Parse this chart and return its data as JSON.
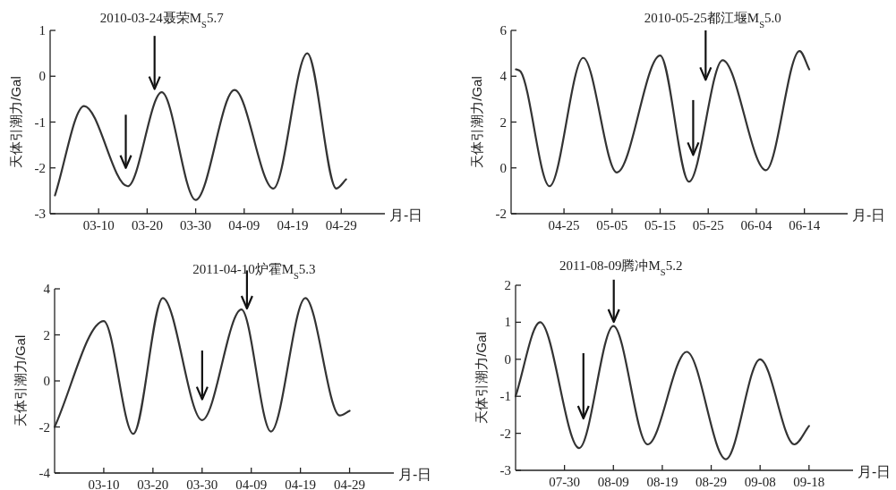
{
  "chart_data": [
    {
      "type": "line",
      "xlabel": "月-日",
      "ylabel": "天体引潮力/Gal",
      "xlim": [
        "--02-28",
        "--05-08"
      ],
      "ylim": [
        -3,
        1
      ],
      "yticks": [
        -3,
        -2,
        -1,
        0,
        1
      ],
      "xticks": [
        {
          "value": "--03-10",
          "label": "03-10"
        },
        {
          "value": "--03-20",
          "label": "03-20"
        },
        {
          "value": "--03-30",
          "label": "03-30"
        },
        {
          "value": "--04-09",
          "label": "04-09"
        },
        {
          "value": "--04-19",
          "label": "04-19"
        },
        {
          "value": "--04-29",
          "label": "04-29"
        }
      ],
      "grid": false,
      "marker": "none",
      "line_style": "solid",
      "title": "2010-03-24聂荣M$_{S}$5.7",
      "series": [
        {
          "color": "#333333",
          "x": [
            "--03-01",
            "--03-07",
            "--03-16",
            "--03-23",
            "--03-30",
            "--04-07",
            "--04-15",
            "--04-22",
            "--04-28",
            "--04-30"
          ],
          "values": [
            -2.6,
            -0.65,
            -2.4,
            -0.35,
            -2.7,
            -0.3,
            -2.45,
            0.5,
            -2.45,
            -2.25
          ]
        }
      ]
    },
    {
      "type": "line",
      "xlabel": "月-日",
      "ylabel": "天体引潮力/Gal",
      "xlim": [
        "--04-14",
        "--06-23"
      ],
      "ylim": [
        -2,
        6
      ],
      "yticks": [
        -2,
        0,
        2,
        4,
        6
      ],
      "xticks": [
        {
          "value": "--04-25",
          "label": "04-25"
        },
        {
          "value": "--05-05",
          "label": "05-05"
        },
        {
          "value": "--05-15",
          "label": "05-15"
        },
        {
          "value": "--05-25",
          "label": "05-25"
        },
        {
          "value": "--06-04",
          "label": "06-04"
        },
        {
          "value": "--06-14",
          "label": "06-14"
        }
      ],
      "grid": false,
      "marker": "none",
      "line_style": "solid",
      "title": "2010-05-25都江堰M$_{S}$5.0",
      "series": [
        {
          "color": "#333333",
          "x": [
            "--04-15",
            "--04-16",
            "--04-22",
            "--04-29",
            "--05-06",
            "--05-15",
            "--05-21",
            "--05-28",
            "--06-06",
            "--06-13",
            "--06-15"
          ],
          "values": [
            4.3,
            4.2,
            -0.8,
            4.8,
            -0.2,
            4.9,
            -0.6,
            4.7,
            -0.1,
            5.1,
            4.3
          ]
        }
      ]
    },
    {
      "type": "line",
      "xlabel": "月-日",
      "ylabel": "天体引潮力/Gal",
      "xlim": [
        "--02-28",
        "--05-08"
      ],
      "ylim": [
        -4,
        4
      ],
      "yticks": [
        -4,
        -2,
        0,
        2,
        4
      ],
      "xticks": [
        {
          "value": "--03-10",
          "label": "03-10"
        },
        {
          "value": "--03-20",
          "label": "03-20"
        },
        {
          "value": "--03-30",
          "label": "03-30"
        },
        {
          "value": "--04-09",
          "label": "04-09"
        },
        {
          "value": "--04-19",
          "label": "04-19"
        },
        {
          "value": "--04-29",
          "label": "04-29"
        }
      ],
      "grid": false,
      "marker": "none",
      "line_style": "solid",
      "title": "2011-04-10炉霍M$_{S}$5.3",
      "series": [
        {
          "color": "#333333",
          "x": [
            "--02-28",
            "--03-10",
            "--03-16",
            "--03-22",
            "--03-30",
            "--04-07",
            "--04-13",
            "--04-20",
            "--04-27",
            "--04-29"
          ],
          "values": [
            -2.0,
            2.6,
            -2.3,
            3.6,
            -1.7,
            3.1,
            -2.2,
            3.6,
            -1.5,
            -1.3
          ]
        }
      ]
    },
    {
      "type": "line",
      "xlabel": "月-日",
      "ylabel": "天体引潮力/Gal",
      "xlim": [
        "--07-20",
        "--09-27"
      ],
      "ylim": [
        -3,
        2
      ],
      "yticks": [
        -3,
        -2,
        -1,
        0,
        1,
        2
      ],
      "xticks": [
        {
          "value": "--07-30",
          "label": "07-30"
        },
        {
          "value": "--08-09",
          "label": "08-09"
        },
        {
          "value": "--08-19",
          "label": "08-19"
        },
        {
          "value": "--08-29",
          "label": "08-29"
        },
        {
          "value": "--09-08",
          "label": "09-08"
        },
        {
          "value": "--09-18",
          "label": "09-18"
        }
      ],
      "grid": false,
      "marker": "none",
      "line_style": "solid",
      "title": "2011-08-09腾冲M$_{S}$5.2",
      "series": [
        {
          "color": "#333333",
          "x": [
            "--07-20",
            "--07-25",
            "--08-02",
            "--08-09",
            "--08-16",
            "--08-24",
            "--09-01",
            "--09-08",
            "--09-15",
            "--09-18"
          ],
          "values": [
            -1.0,
            1.0,
            -2.4,
            0.9,
            -2.3,
            0.2,
            -2.7,
            0.0,
            -2.3,
            -1.8
          ]
        }
      ]
    }
  ]
}
